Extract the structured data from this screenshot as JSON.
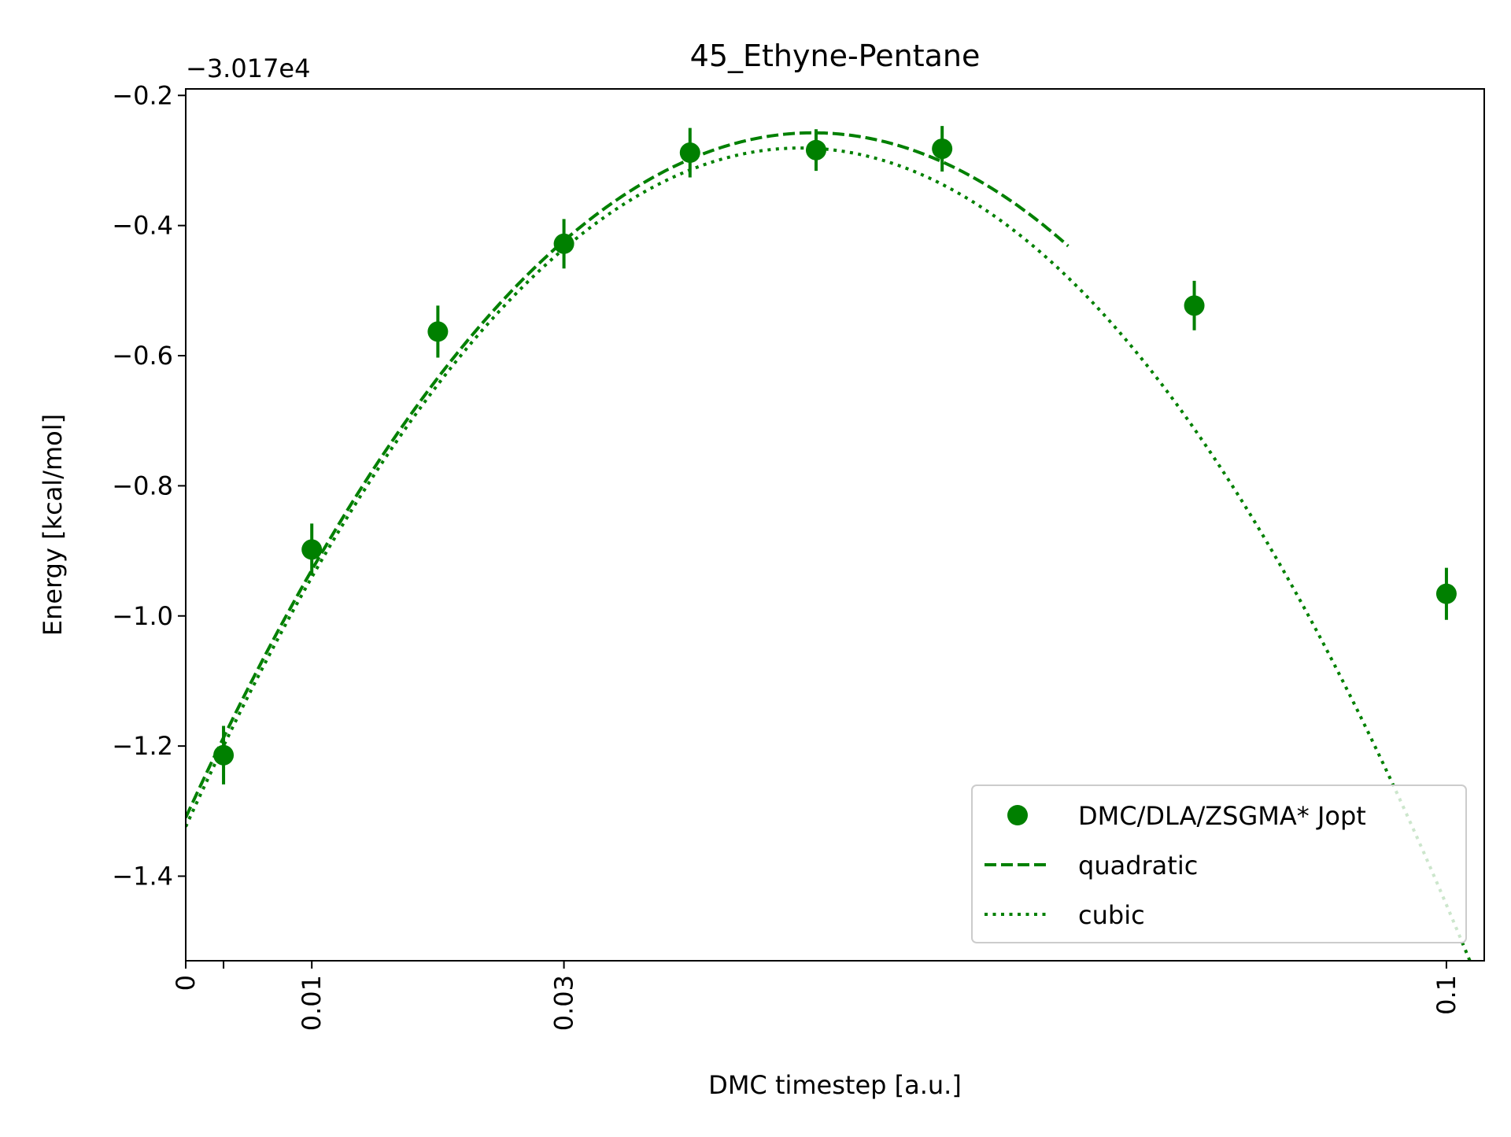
{
  "chart_data": {
    "type": "scatter",
    "title": "45_Ethyne-Pentane",
    "xlabel": "DMC timestep [a.u.]",
    "ylabel": "Energy [kcal/mol]",
    "y_offset_label": "−3.017e4",
    "xlim": [
      0,
      0.103
    ],
    "ylim": [
      -1.53,
      -0.19
    ],
    "xticks": [
      {
        "value": 0,
        "label": "0"
      },
      {
        "value": 0.003,
        "label": ""
      },
      {
        "value": 0.01,
        "label": "0.01"
      },
      {
        "value": 0.03,
        "label": "0.03"
      },
      {
        "value": 0.1,
        "label": "0.1"
      }
    ],
    "yticks": [
      {
        "value": -0.2,
        "label": "−0.2"
      },
      {
        "value": -0.4,
        "label": "−0.4"
      },
      {
        "value": -0.6,
        "label": "−0.6"
      },
      {
        "value": -0.8,
        "label": "−0.8"
      },
      {
        "value": -1.0,
        "label": "−1.0"
      },
      {
        "value": -1.2,
        "label": "−1.2"
      },
      {
        "value": -1.4,
        "label": "−1.4"
      }
    ],
    "grid": false,
    "legend_position": "lower-right",
    "color": "#008000",
    "series": [
      {
        "name": "DMC/DLA/ZSGMA* Jopt",
        "kind": "errorbar",
        "points": [
          {
            "x": 0.003,
            "y": -1.214,
            "err": 0.045
          },
          {
            "x": 0.01,
            "y": -0.898,
            "err": 0.04
          },
          {
            "x": 0.02,
            "y": -0.563,
            "err": 0.04
          },
          {
            "x": 0.03,
            "y": -0.428,
            "err": 0.038
          },
          {
            "x": 0.04,
            "y": -0.288,
            "err": 0.038
          },
          {
            "x": 0.05,
            "y": -0.284,
            "err": 0.032
          },
          {
            "x": 0.06,
            "y": -0.282,
            "err": 0.035
          },
          {
            "x": 0.08,
            "y": -0.523,
            "err": 0.038
          },
          {
            "x": 0.1,
            "y": -0.966,
            "err": 0.04
          }
        ]
      },
      {
        "name": "quadratic",
        "kind": "line",
        "dash": "dashed",
        "x_range": [
          0,
          0.07
        ],
        "coefficients": [
          -1.31,
          42.3,
          -425
        ]
      },
      {
        "name": "cubic",
        "kind": "line",
        "dash": "dotted",
        "x_range": [
          0,
          0.103
        ],
        "coefficients": [
          -1.324,
          42.7,
          -435,
          -40
        ]
      }
    ]
  }
}
